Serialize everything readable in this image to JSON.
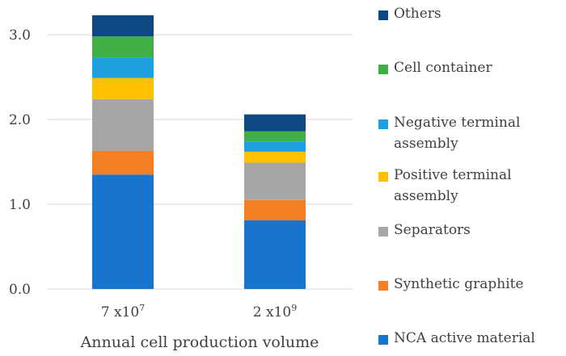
{
  "chart_data": {
    "type": "bar",
    "stacked": true,
    "categories": [
      "7 x10",
      "2 x10"
    ],
    "category_exponents": [
      "7",
      "9"
    ],
    "xlabel": "Annual cell production volume",
    "ylim": [
      0,
      3.2
    ],
    "yticks": [
      "0.0",
      "1.0",
      "2.0",
      "3.0"
    ],
    "ytick_values": [
      0,
      1,
      2,
      3
    ],
    "grid": true,
    "legend_position": "right",
    "series": [
      {
        "name": "NCA active material",
        "color": "#1874CD",
        "values": [
          1.35,
          0.81
        ]
      },
      {
        "name": "Synthetic graphite",
        "color": "#F47F24",
        "values": [
          0.28,
          0.24
        ]
      },
      {
        "name": "Separators",
        "color": "#A6A6A6",
        "values": [
          0.61,
          0.44
        ]
      },
      {
        "name": "Positive terminal assembly",
        "color": "#FFC000",
        "values": [
          0.25,
          0.13
        ]
      },
      {
        "name": "Negative terminal\nassembly",
        "color": "#1E9FE0",
        "values": [
          0.24,
          0.12
        ]
      },
      {
        "name": "Cell container",
        "color": "#3FAF46",
        "values": [
          0.25,
          0.12
        ]
      },
      {
        "name": "Others",
        "color": "#0D4A85",
        "values": [
          0.25,
          0.2
        ]
      }
    ]
  }
}
